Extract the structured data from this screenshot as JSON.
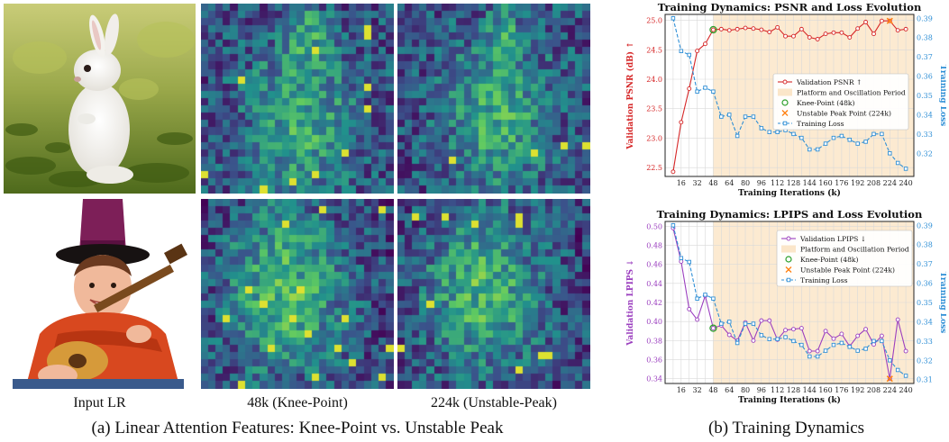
{
  "panel_a": {
    "captions": [
      "Input LR",
      "48k (Knee-Point)",
      "224k (Unstable-Peak)"
    ],
    "subcaption": "(a) Linear Attention Features: Knee-Point vs. Unstable Peak",
    "heatmap_colormap": "viridis"
  },
  "panel_b": {
    "subcaption": "(b) Training Dynamics"
  },
  "colors": {
    "psnr": "#d62728",
    "lpips": "#9b3fbf",
    "loss": "#2f8fd6",
    "platform": "#fbe6c9",
    "knee": "#2ca02c",
    "peak": "#ff7f0e"
  },
  "chart_data": [
    {
      "type": "line",
      "title": "Training Dynamics: PSNR and Loss Evolution",
      "xlabel": "Training Iterations (k)",
      "ylabel_left": "Validation PSNR (dB) ↑",
      "ylabel_right": "Training Loss",
      "xticks": [
        16,
        32,
        48,
        64,
        80,
        96,
        112,
        128,
        144,
        160,
        176,
        192,
        208,
        224,
        240
      ],
      "xlim": [
        0,
        248
      ],
      "ylim_left": [
        22.35,
        25.1
      ],
      "yticks_left": [
        22.5,
        23.0,
        23.5,
        24.0,
        24.5,
        25.0
      ],
      "ylim_right": [
        0.308,
        0.392
      ],
      "yticks_right": [
        0.32,
        0.33,
        0.34,
        0.35,
        0.36,
        0.37,
        0.38,
        0.39
      ],
      "platform_range": [
        48,
        248
      ],
      "x": [
        8,
        16,
        24,
        32,
        40,
        48,
        56,
        64,
        72,
        80,
        88,
        96,
        104,
        112,
        120,
        128,
        136,
        144,
        152,
        160,
        168,
        176,
        184,
        192,
        200,
        208,
        216,
        224,
        232,
        240
      ],
      "series": [
        {
          "name": "Validation PSNR ↑",
          "axis": "left",
          "marker": "circle",
          "values": [
            22.43,
            23.27,
            23.84,
            24.48,
            24.6,
            24.84,
            24.85,
            24.83,
            24.85,
            24.87,
            24.86,
            24.84,
            24.8,
            24.88,
            24.73,
            24.73,
            24.85,
            24.71,
            24.68,
            24.77,
            24.79,
            24.79,
            24.71,
            24.86,
            24.97,
            24.77,
            24.99,
            24.99,
            24.83,
            24.85
          ]
        },
        {
          "name": "Training Loss",
          "axis": "right",
          "marker": "square",
          "dashed": true,
          "values": [
            0.39,
            0.373,
            0.371,
            0.352,
            0.354,
            0.352,
            0.339,
            0.34,
            0.329,
            0.339,
            0.339,
            0.333,
            0.331,
            0.331,
            0.332,
            0.33,
            0.328,
            0.322,
            0.322,
            0.325,
            0.328,
            0.329,
            0.327,
            0.325,
            0.326,
            0.33,
            0.33,
            0.32,
            0.315,
            0.312
          ]
        }
      ],
      "legend": [
        "Validation PSNR ↑",
        "Platform and Oscillation Period",
        "Knee-Point (48k)",
        "Unstable Peak Point (224k)",
        "Training Loss"
      ],
      "legend_placement": "center-right",
      "knee_point": {
        "x": 48,
        "y": 24.84
      },
      "peak_point": {
        "x": 224,
        "y": 24.99
      }
    },
    {
      "type": "line",
      "title": "Training Dynamics: LPIPS and Loss Evolution",
      "xlabel": "Training Iterations (k)",
      "ylabel_left": "Validation LPIPS ↓",
      "ylabel_right": "Training Loss",
      "xticks": [
        16,
        32,
        48,
        64,
        80,
        96,
        112,
        128,
        144,
        160,
        176,
        192,
        208,
        224,
        240
      ],
      "xlim": [
        0,
        248
      ],
      "ylim_left": [
        0.335,
        0.505
      ],
      "yticks_left": [
        0.34,
        0.36,
        0.38,
        0.4,
        0.42,
        0.44,
        0.46,
        0.48,
        0.5
      ],
      "ylim_right": [
        0.308,
        0.392
      ],
      "yticks_right": [
        0.31,
        0.32,
        0.33,
        0.34,
        0.35,
        0.36,
        0.37,
        0.38,
        0.39
      ],
      "platform_range": [
        48,
        248
      ],
      "x": [
        8,
        16,
        24,
        32,
        40,
        48,
        56,
        64,
        72,
        80,
        88,
        96,
        104,
        112,
        120,
        128,
        136,
        144,
        152,
        160,
        168,
        176,
        184,
        192,
        200,
        208,
        216,
        224,
        232,
        240
      ],
      "series": [
        {
          "name": "Validation LPIPS ↓",
          "axis": "left",
          "marker": "circle",
          "values": [
            0.498,
            0.463,
            0.413,
            0.402,
            0.427,
            0.393,
            0.396,
            0.386,
            0.38,
            0.399,
            0.38,
            0.401,
            0.401,
            0.381,
            0.391,
            0.392,
            0.393,
            0.369,
            0.369,
            0.39,
            0.382,
            0.387,
            0.374,
            0.385,
            0.392,
            0.376,
            0.385,
            0.34,
            0.402,
            0.369
          ]
        },
        {
          "name": "Training Loss",
          "axis": "right",
          "marker": "square",
          "dashed": true,
          "values": [
            0.39,
            0.373,
            0.371,
            0.352,
            0.354,
            0.352,
            0.339,
            0.34,
            0.329,
            0.339,
            0.339,
            0.333,
            0.331,
            0.331,
            0.332,
            0.33,
            0.328,
            0.322,
            0.322,
            0.325,
            0.328,
            0.329,
            0.327,
            0.325,
            0.326,
            0.33,
            0.33,
            0.32,
            0.315,
            0.312
          ]
        }
      ],
      "legend": [
        "Validation LPIPS ↓",
        "Platform and Oscillation Period",
        "Knee-Point (48k)",
        "Unstable Peak Point (224k)",
        "Training Loss"
      ],
      "legend_placement": "upper-right",
      "knee_point": {
        "x": 48,
        "y": 0.393
      },
      "peak_point": {
        "x": 224,
        "y": 0.34
      }
    }
  ]
}
